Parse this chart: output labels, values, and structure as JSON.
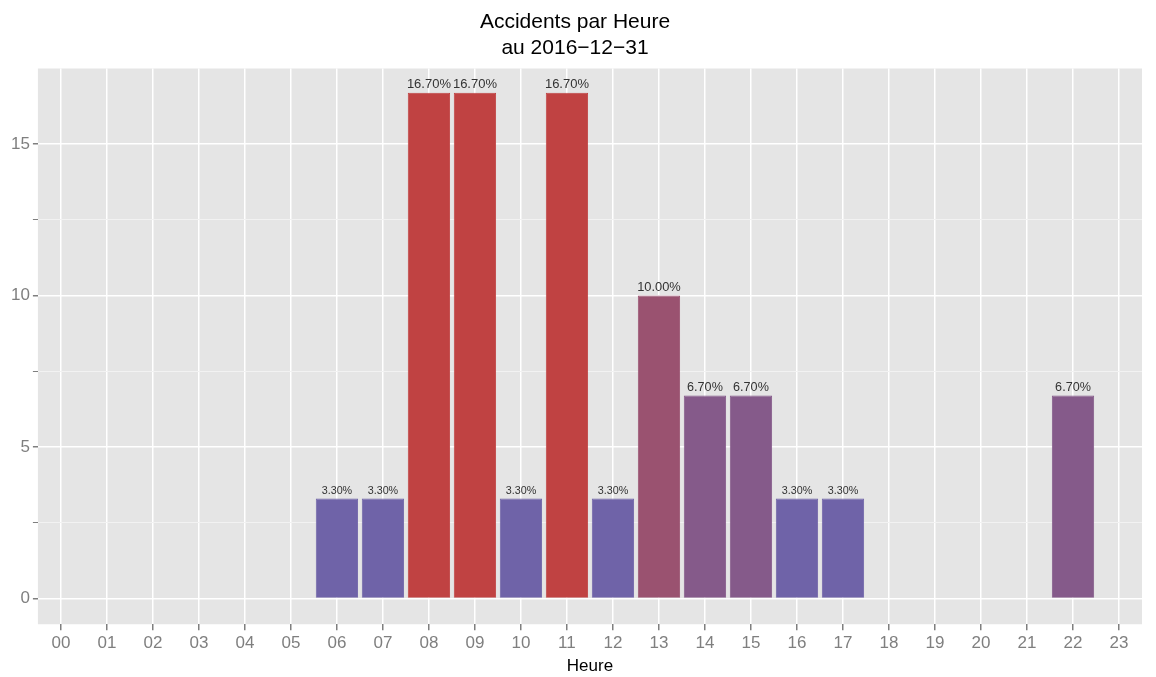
{
  "chart_data": {
    "type": "bar",
    "title": "Accidents par Heure\nau 2016−12−31",
    "xlabel": "Heure",
    "categories": [
      "00",
      "01",
      "02",
      "03",
      "04",
      "05",
      "06",
      "07",
      "08",
      "09",
      "10",
      "11",
      "12",
      "13",
      "14",
      "15",
      "16",
      "17",
      "18",
      "19",
      "20",
      "21",
      "22",
      "23"
    ],
    "values": [
      0,
      0,
      0,
      0,
      0,
      0,
      3.3,
      3.3,
      16.7,
      16.7,
      3.3,
      16.7,
      3.3,
      10,
      6.7,
      6.7,
      3.3,
      3.3,
      0,
      0,
      0,
      0,
      6.7,
      0
    ],
    "colors": [
      "#dcdcf0",
      "#dcdcf0",
      "#dcdcf0",
      "#dcdcf0",
      "#dcdcf0",
      "#dcdcf0",
      "#6f63a8",
      "#6f63a8",
      "#c04242",
      "#c04242",
      "#6f63a8",
      "#c04242",
      "#6f63a8",
      "#9a5270",
      "#855a8a",
      "#855a8a",
      "#6f63a8",
      "#6f63a8",
      "#dcdcf0",
      "#dcdcf0",
      "#dcdcf0",
      "#dcdcf0",
      "#855a8a",
      "#dcdcf0"
    ],
    "value_labels": [
      null,
      null,
      null,
      null,
      null,
      null,
      "3.30%",
      "3.30%",
      "16.70%",
      "16.70%",
      "3.30%",
      "16.70%",
      "3.30%",
      "10.00%",
      "6.70%",
      "6.70%",
      "3.30%",
      "3.30%",
      null,
      null,
      null,
      null,
      "6.70%",
      null
    ],
    "ylim": [
      -0.85,
      17.5
    ],
    "yticks": [
      0,
      {
        "value": 2.5,
        "label": null
      },
      5,
      {
        "value": 7.5,
        "label": null
      },
      10,
      {
        "value": 12.5,
        "label": null
      },
      15
    ],
    "grid": true,
    "legend": false
  }
}
